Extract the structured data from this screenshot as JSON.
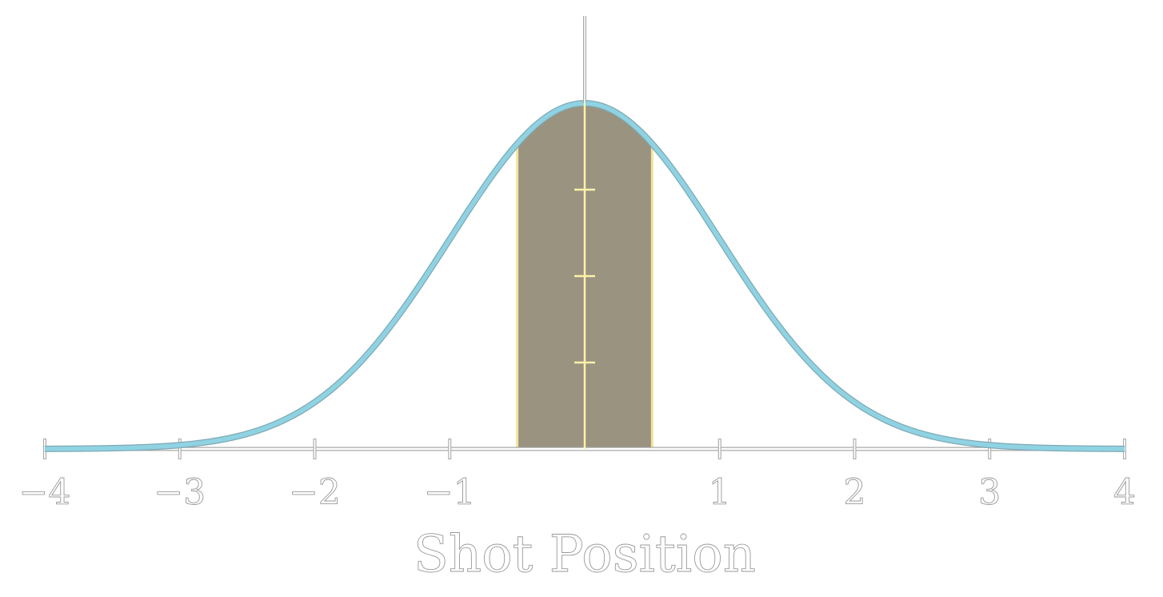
{
  "chart_data": {
    "type": "area",
    "title": "",
    "xlabel": "Shot Position",
    "ylabel": "",
    "xlim": [
      -4,
      4
    ],
    "x_ticks": [
      -4,
      -3,
      -2,
      -1,
      0,
      1,
      2,
      3,
      4
    ],
    "x_tick_labels": [
      "−4",
      "−3",
      "−2",
      "−1",
      "",
      "1",
      "2",
      "3",
      "4"
    ],
    "curve": {
      "distribution": "normal",
      "mean": 0,
      "sd": 1
    },
    "shaded_band": {
      "from": -0.5,
      "to": 0.5
    },
    "center_line_ticks_fraction_of_peak": [
      0.25,
      0.5,
      0.75
    ],
    "grid": false,
    "legend": "none",
    "colors": {
      "curve": "#8fd3e3",
      "curve_edge": "#7fa9b3",
      "band_fill": "#9a9380",
      "band_edge": "#f3e39a",
      "center_line": "#fff2a8",
      "axis": "#a8a8a8"
    }
  }
}
